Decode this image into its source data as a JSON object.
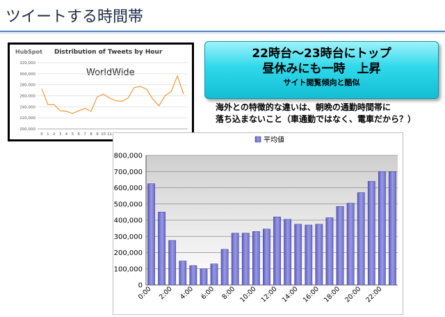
{
  "page_title": "ツイートする時間帯",
  "inset": {
    "logo_text": "HubSpot",
    "label": "WorldWide"
  },
  "callout": {
    "line1": "22時台～23時台にトップ",
    "line2": "昼休みにも一時　上昇",
    "line3": "サイト閲覧傾向と酷似"
  },
  "note": {
    "line1": "海外との特徴的な違いは、朝晩の通勤時間帯に",
    "line2": "落ち込まないこと（車通勤ではなく、電車だから？）"
  },
  "chart_data": [
    {
      "type": "line",
      "title": "Distribution of Tweets by Hour",
      "x": [
        0,
        1,
        2,
        3,
        4,
        5,
        6,
        7,
        8,
        9,
        10,
        11,
        12,
        13,
        14,
        15,
        16,
        17,
        18,
        19,
        20,
        21,
        22,
        23
      ],
      "series": [
        {
          "values": [
            273000,
            244000,
            244000,
            233000,
            232000,
            228000,
            233000,
            237000,
            232000,
            258000,
            263000,
            256000,
            251000,
            250000,
            256000,
            275000,
            277000,
            272000,
            254000,
            242000,
            260000,
            268000,
            296000,
            263000
          ]
        }
      ],
      "ylim": [
        200000,
        320000
      ],
      "yticks": [
        "200,000",
        "220,000",
        "240,000",
        "260,000",
        "280,000",
        "300,000",
        "320,000"
      ],
      "color": "#f0a040",
      "grid": true
    },
    {
      "type": "bar",
      "categories": [
        "0:00",
        "1:00",
        "2:00",
        "3:00",
        "4:00",
        "5:00",
        "6:00",
        "7:00",
        "8:00",
        "9:00",
        "10:00",
        "11:00",
        "12:00",
        "13:00",
        "14:00",
        "15:00",
        "16:00",
        "17:00",
        "18:00",
        "19:00",
        "20:00",
        "21:00",
        "22:00",
        "23:00"
      ],
      "tick_labels": [
        "0:00",
        "",
        "2:00",
        "",
        "4:00",
        "",
        "6:00",
        "",
        "8:00",
        "",
        "10:00",
        "",
        "12:00",
        "",
        "14:00",
        "",
        "16:00",
        "",
        "18:00",
        "",
        "20:00",
        "",
        "22:00",
        ""
      ],
      "series": [
        {
          "name": "平均値",
          "values": [
            625000,
            450000,
            275000,
            148000,
            120000,
            100000,
            130000,
            220000,
            320000,
            320000,
            330000,
            345000,
            420000,
            405000,
            375000,
            370000,
            375000,
            415000,
            485000,
            505000,
            570000,
            640000,
            700000,
            700000
          ]
        }
      ],
      "ylim": [
        0,
        800000
      ],
      "yticks": [
        "0",
        "100,000",
        "200,000",
        "300,000",
        "400,000",
        "500,000",
        "600,000",
        "700,000",
        "800,000"
      ],
      "legend_position": "top",
      "bar_color": "#8080d8",
      "grid": true
    }
  ]
}
